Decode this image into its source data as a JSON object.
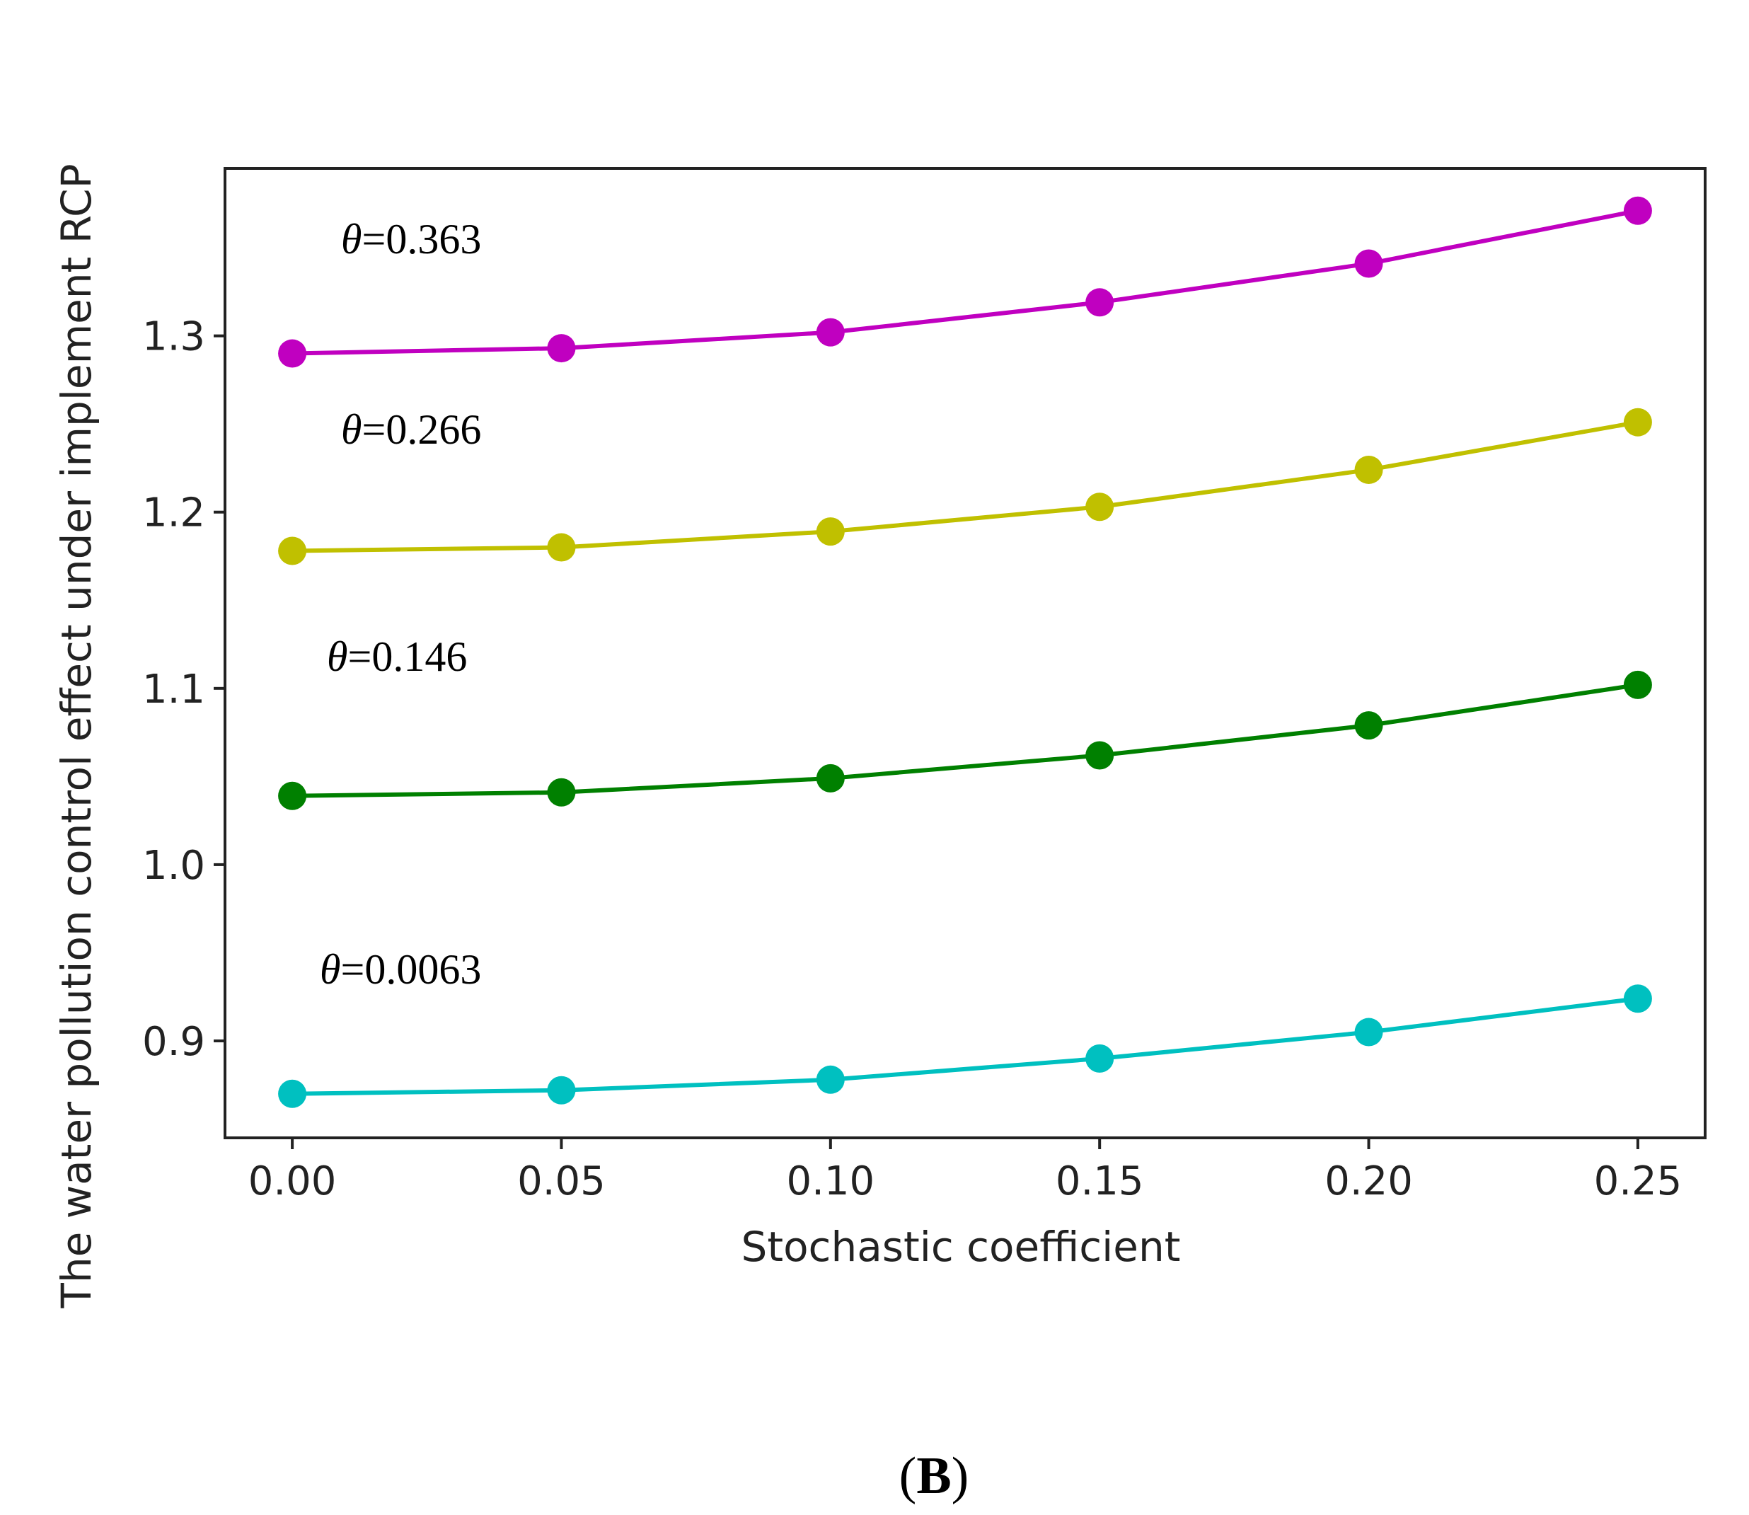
{
  "chart_data": {
    "type": "line",
    "title": "",
    "xlabel": "Stochastic coefficient",
    "ylabel": "The water pollution control effect under implement RCP",
    "x": [
      0.0,
      0.05,
      0.1,
      0.15,
      0.2,
      0.25
    ],
    "xticks": [
      0.0,
      0.05,
      0.1,
      0.15,
      0.2,
      0.25
    ],
    "xtick_labels": [
      "0.00",
      "0.05",
      "0.10",
      "0.15",
      "0.20",
      "0.25"
    ],
    "yticks": [
      0.9,
      1.0,
      1.1,
      1.2,
      1.3
    ],
    "ytick_labels": [
      "0.9",
      "1.0",
      "1.1",
      "1.2",
      "1.3"
    ],
    "xlim": [
      -0.0125,
      0.2625
    ],
    "ylim": [
      0.845,
      1.395
    ],
    "grid": false,
    "series": [
      {
        "name": "θ=0.363",
        "color": "#c000c0",
        "values": [
          1.29,
          1.293,
          1.302,
          1.319,
          1.341,
          1.371
        ]
      },
      {
        "name": "θ=0.266",
        "color": "#c0c000",
        "values": [
          1.178,
          1.18,
          1.189,
          1.203,
          1.224,
          1.251
        ]
      },
      {
        "name": "θ=0.146",
        "color": "#008000",
        "values": [
          1.039,
          1.041,
          1.049,
          1.062,
          1.079,
          1.102
        ]
      },
      {
        "name": "θ=0.0063",
        "color": "#00c0c0",
        "values": [
          0.87,
          0.872,
          0.878,
          0.89,
          0.905,
          0.924
        ]
      }
    ],
    "annotations": [
      {
        "theta_symbol": "θ",
        "value_text": "=0.363"
      },
      {
        "theta_symbol": "θ",
        "value_text": "=0.266"
      },
      {
        "theta_symbol": "θ",
        "value_text": "=0.146"
      },
      {
        "theta_symbol": "θ",
        "value_text": "=0.0063"
      }
    ]
  },
  "panel_label": {
    "open": "(",
    "letter": "B",
    "close": ")"
  }
}
